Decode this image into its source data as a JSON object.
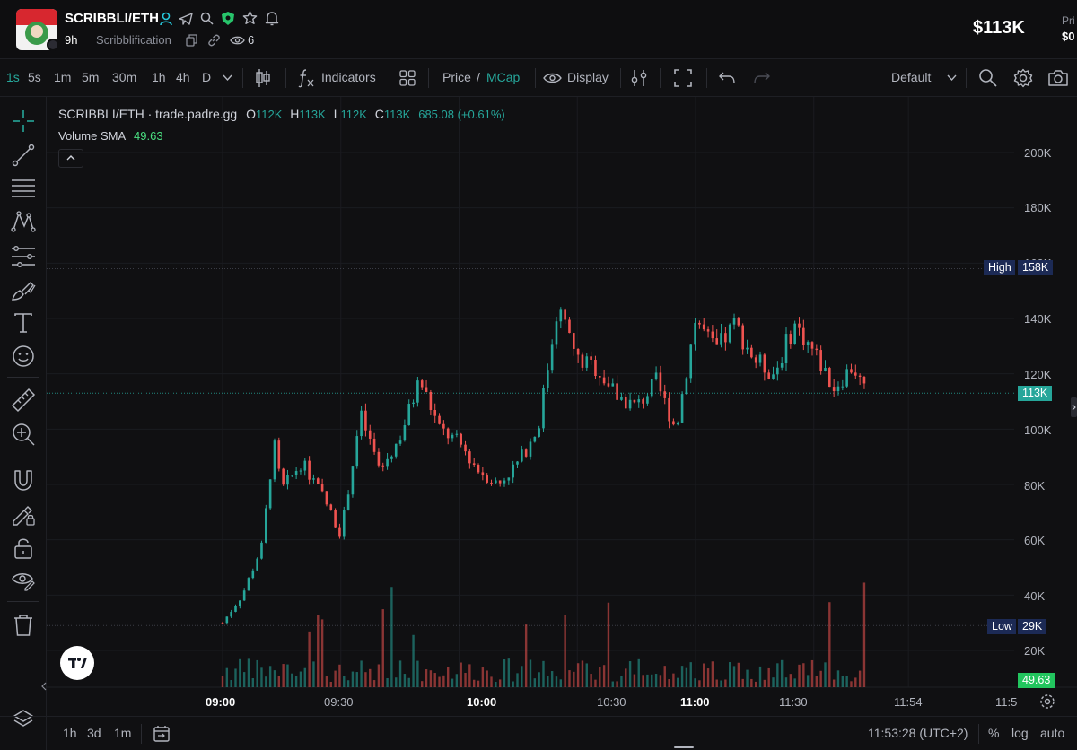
{
  "header": {
    "pair": "SCRIBBLI/ETH",
    "age": "9h",
    "token_name": "Scribblification",
    "viewers": "6",
    "market_cap": "$113K",
    "right_label_partial": "Pri",
    "right_value_partial": "$0"
  },
  "toolbar": {
    "intervals": [
      "1s",
      "5s",
      "1m",
      "5m",
      "30m",
      "1h",
      "4h",
      "D"
    ],
    "active_interval": "1s",
    "indicators_label": "Indicators",
    "price_label": "Price",
    "slash": "/",
    "mcap_label": "MCap",
    "display_label": "Display",
    "layout_label": "Default"
  },
  "chart": {
    "legend": {
      "symbol": "SCRIBBLI/ETH · trade.padre.gg",
      "o_label": "O",
      "o_value": "112K",
      "h_label": "H",
      "h_value": "113K",
      "l_label": "L",
      "l_value": "112K",
      "c_label": "C",
      "c_value": "113K",
      "change": "685.08 (+0.61%)",
      "volume_label": "Volume SMA",
      "volume_value": "49.63"
    },
    "y_ticks": [
      "200K",
      "180K",
      "160K",
      "140K",
      "120K",
      "100K",
      "80K",
      "60K",
      "40K",
      "20K"
    ],
    "x_ticks": [
      {
        "label": "09:00",
        "bold": true
      },
      {
        "label": "09:30",
        "bold": false
      },
      {
        "label": "10:00",
        "bold": true
      },
      {
        "label": "10:30",
        "bold": false
      },
      {
        "label": "11:00",
        "bold": true
      },
      {
        "label": "11:30",
        "bold": false
      },
      {
        "label": "11:54",
        "bold": false
      },
      {
        "label": "11:5",
        "bold": false
      }
    ],
    "high_label": "High",
    "high_value": "158K",
    "low_label": "Low",
    "low_value": "29K",
    "current_value": "113K",
    "volume_sma_tag": "49.63",
    "colors": {
      "up": "#26a69a",
      "down": "#ef5350",
      "background": "#101012",
      "high_tag": "#1c2a55",
      "current_tag": "#26a69a",
      "volume_tag": "#22c55e"
    }
  },
  "chart_data": {
    "type": "candlestick",
    "title": "SCRIBBLI/ETH · trade.padre.gg",
    "x_unit": "time",
    "y_unit": "market cap",
    "ylim": [
      0,
      210000
    ],
    "x_range": [
      "08:55",
      "11:59"
    ],
    "grid": true,
    "high": 158000,
    "low": 29000,
    "last": 113000,
    "approx_close_path": [
      {
        "t": "09:00",
        "v": 30000
      },
      {
        "t": "09:05",
        "v": 40000
      },
      {
        "t": "09:10",
        "v": 58000
      },
      {
        "t": "09:13",
        "v": 95000
      },
      {
        "t": "09:15",
        "v": 78000
      },
      {
        "t": "09:20",
        "v": 88000
      },
      {
        "t": "09:25",
        "v": 77000
      },
      {
        "t": "09:30",
        "v": 62000
      },
      {
        "t": "09:35",
        "v": 105000
      },
      {
        "t": "09:40",
        "v": 85000
      },
      {
        "t": "09:45",
        "v": 97000
      },
      {
        "t": "09:50",
        "v": 118000
      },
      {
        "t": "09:55",
        "v": 100000
      },
      {
        "t": "10:00",
        "v": 95000
      },
      {
        "t": "10:05",
        "v": 85000
      },
      {
        "t": "10:10",
        "v": 80000
      },
      {
        "t": "10:15",
        "v": 88000
      },
      {
        "t": "10:20",
        "v": 100000
      },
      {
        "t": "10:25",
        "v": 145000
      },
      {
        "t": "10:30",
        "v": 125000
      },
      {
        "t": "10:35",
        "v": 122000
      },
      {
        "t": "10:40",
        "v": 112000
      },
      {
        "t": "10:45",
        "v": 108000
      },
      {
        "t": "10:50",
        "v": 117000
      },
      {
        "t": "10:55",
        "v": 100000
      },
      {
        "t": "11:00",
        "v": 140000
      },
      {
        "t": "11:05",
        "v": 128000
      },
      {
        "t": "11:10",
        "v": 138000
      },
      {
        "t": "11:15",
        "v": 125000
      },
      {
        "t": "11:20",
        "v": 120000
      },
      {
        "t": "11:25",
        "v": 138000
      },
      {
        "t": "11:30",
        "v": 128000
      },
      {
        "t": "11:35",
        "v": 115000
      },
      {
        "t": "11:40",
        "v": 123000
      },
      {
        "t": "11:43",
        "v": 113000
      }
    ],
    "volume_sma": 49.63
  },
  "bottom": {
    "ranges": [
      "1h",
      "3d",
      "1m"
    ],
    "clock": "11:53:28 (UTC+2)",
    "percent": "%",
    "log": "log",
    "auto": "auto"
  }
}
